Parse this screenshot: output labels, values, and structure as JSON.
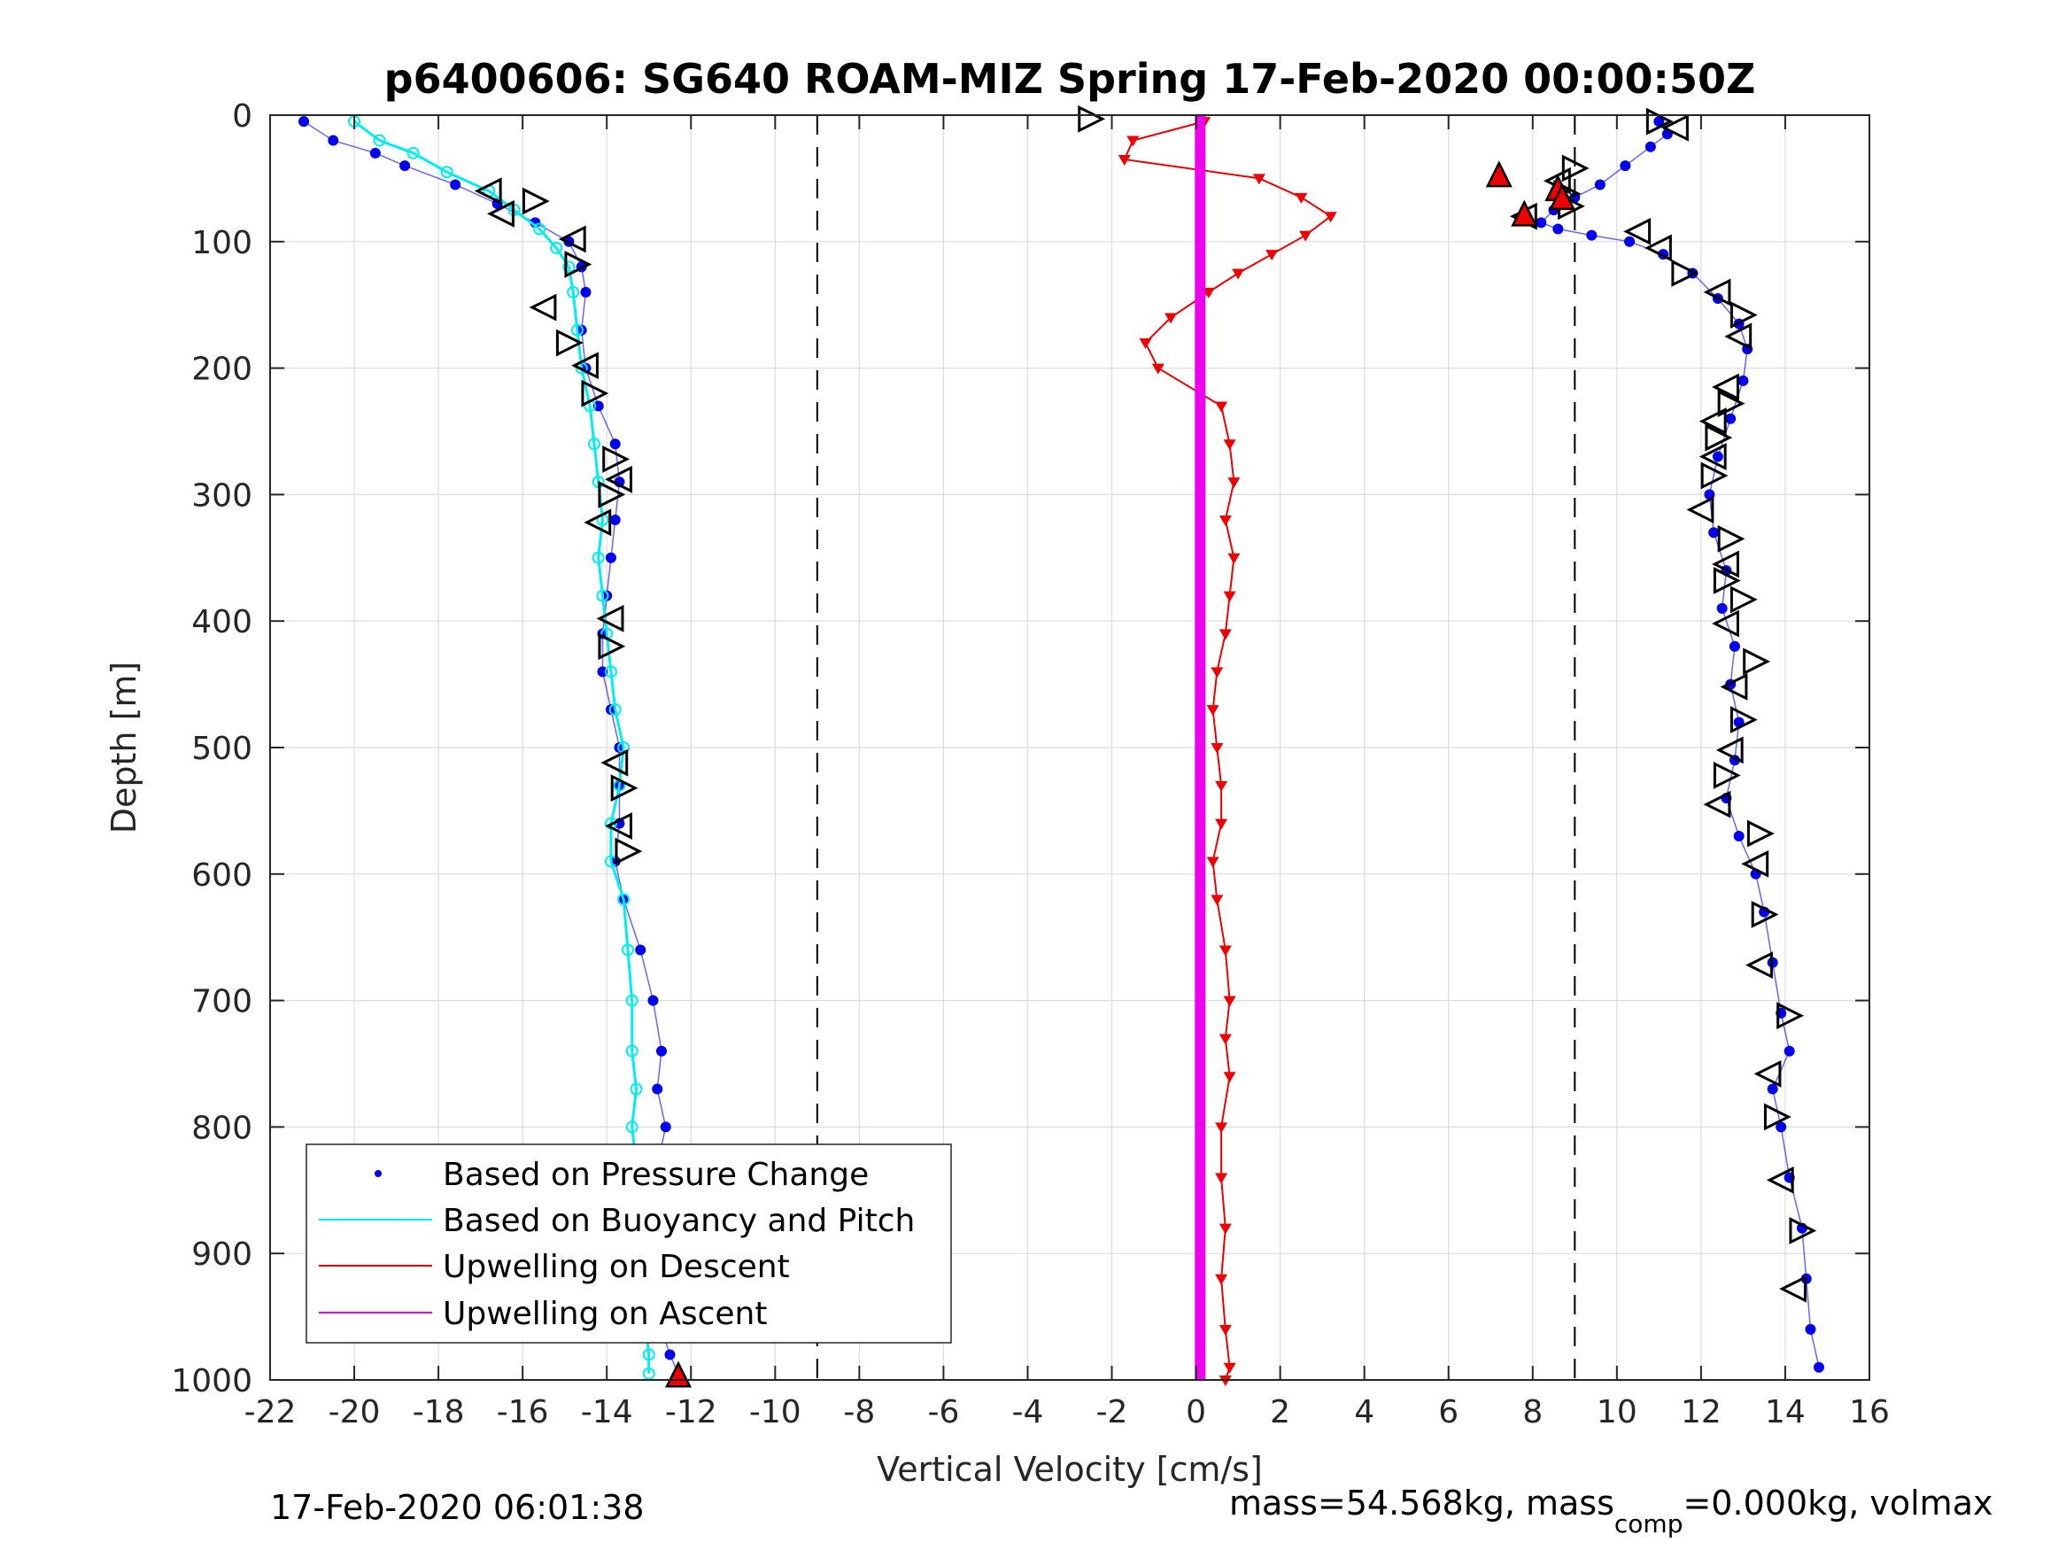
{
  "chart_data": {
    "type": "scatter",
    "title": "p6400606: SG640 ROAM-MIZ Spring 17-Feb-2020 00:00:50Z",
    "xlabel": "Vertical Velocity [cm/s]",
    "ylabel": "Depth [m]",
    "xlim": [
      -22,
      16
    ],
    "ylim": [
      0,
      1000
    ],
    "y_reversed": true,
    "grid": true,
    "x_ticks": [
      "-22",
      "-20",
      "-18",
      "-16",
      "-14",
      "-12",
      "-10",
      "-8",
      "-6",
      "-4",
      "-2",
      "0",
      "2",
      "4",
      "6",
      "8",
      "10",
      "12",
      "14",
      "16"
    ],
    "y_ticks": [
      "0",
      "100",
      "200",
      "300",
      "400",
      "500",
      "600",
      "700",
      "800",
      "900",
      "1000"
    ],
    "reference_lines_x": [
      -9,
      9
    ],
    "legend_position": "bottom-left",
    "footer_left": "17-Feb-2020 06:01:38",
    "footer_right": {
      "part1": "mass=54.568kg, mass",
      "sub": "comp",
      "part2": "=0.000kg, volmax"
    },
    "series": [
      {
        "name": "Based on Pressure Change",
        "color": "#0000ee",
        "profiles": [
          {
            "label": "descent",
            "x": [
              -21.2,
              -20.5,
              -19.5,
              -18.8,
              -17.6,
              -16.6,
              -15.7,
              -14.9,
              -14.6,
              -14.5,
              -14.6,
              -14.5,
              -14.2,
              -13.8,
              -13.7,
              -13.8,
              -13.9,
              -14.0,
              -14.1,
              -14.1,
              -13.9,
              -13.7,
              -13.7,
              -13.7,
              -13.8,
              -13.6,
              -13.2,
              -12.9,
              -12.7,
              -12.8,
              -12.6,
              -12.8,
              -12.9,
              -13.0,
              -12.9,
              -12.8,
              -12.5,
              -12.3
            ],
            "y": [
              5,
              20,
              30,
              40,
              55,
              70,
              85,
              100,
              120,
              140,
              170,
              200,
              230,
              260,
              290,
              320,
              350,
              380,
              410,
              440,
              470,
              500,
              530,
              560,
              590,
              620,
              660,
              700,
              740,
              770,
              800,
              830,
              860,
              890,
              920,
              950,
              980,
              995
            ]
          },
          {
            "label": "ascent",
            "x": [
              11.0,
              11.2,
              10.8,
              10.2,
              9.6,
              9.0,
              8.5,
              8.2,
              8.6,
              9.4,
              10.3,
              11.1,
              11.8,
              12.4,
              12.9,
              13.1,
              13.0,
              12.7,
              12.4,
              12.2,
              12.3,
              12.6,
              12.5,
              12.8,
              12.7,
              12.9,
              12.8,
              12.6,
              12.9,
              13.3,
              13.5,
              13.7,
              13.9,
              14.1,
              13.7,
              13.9,
              14.1,
              14.4,
              14.5,
              14.6,
              14.8
            ],
            "y": [
              5,
              15,
              25,
              40,
              55,
              65,
              75,
              85,
              90,
              95,
              100,
              110,
              125,
              145,
              165,
              185,
              210,
              240,
              270,
              300,
              330,
              360,
              390,
              420,
              450,
              480,
              510,
              540,
              570,
              600,
              630,
              670,
              710,
              740,
              770,
              800,
              840,
              880,
              920,
              960,
              990
            ]
          }
        ]
      },
      {
        "name": "Based on Buoyancy and Pitch",
        "color": "#00eeee",
        "profiles": [
          {
            "label": "descent",
            "x": [
              -20.0,
              -19.4,
              -18.6,
              -17.8,
              -16.8,
              -16.2,
              -15.6,
              -15.2,
              -14.9,
              -14.8,
              -14.7,
              -14.6,
              -14.4,
              -14.3,
              -14.2,
              -14.1,
              -14.2,
              -14.1,
              -14.0,
              -13.9,
              -13.8,
              -13.6,
              -13.7,
              -13.9,
              -13.9,
              -13.6,
              -13.5,
              -13.4,
              -13.4,
              -13.3,
              -13.4,
              -13.3,
              -13.3,
              -13.3,
              -13.2,
              -13.1,
              -13.0,
              -13.0
            ],
            "y": [
              5,
              20,
              30,
              45,
              60,
              75,
              90,
              105,
              120,
              140,
              170,
              200,
              230,
              260,
              290,
              320,
              350,
              380,
              410,
              440,
              470,
              500,
              530,
              560,
              590,
              620,
              660,
              700,
              740,
              770,
              800,
              830,
              860,
              890,
              920,
              950,
              980,
              995
            ]
          }
        ]
      },
      {
        "name": "Upwelling on Descent",
        "color": "#ee0000",
        "profiles": [
          {
            "label": "descent",
            "x": [
              0.2,
              -1.5,
              -1.7,
              1.5,
              2.5,
              3.2,
              2.6,
              1.8,
              1.0,
              0.3,
              -0.6,
              -1.2,
              -0.9,
              0.6,
              0.8,
              0.9,
              0.7,
              0.9,
              0.8,
              0.7,
              0.5,
              0.4,
              0.5,
              0.6,
              0.6,
              0.4,
              0.5,
              0.7,
              0.8,
              0.7,
              0.8,
              0.6,
              0.6,
              0.7,
              0.6,
              0.7,
              0.8,
              0.7
            ],
            "y": [
              5,
              20,
              35,
              50,
              65,
              80,
              95,
              110,
              125,
              140,
              160,
              180,
              200,
              230,
              260,
              290,
              320,
              350,
              380,
              410,
              440,
              470,
              500,
              530,
              560,
              590,
              620,
              660,
              700,
              730,
              760,
              800,
              840,
              880,
              920,
              960,
              990,
              1000
            ]
          }
        ]
      },
      {
        "name": "Upwelling on Ascent",
        "color": "#ee00ee",
        "profiles": [
          {
            "label": "ascent",
            "x": [
              0.1,
              0.1,
              0.1,
              0.1,
              0.1,
              0.1,
              0.1,
              0.1,
              0.1,
              0.1,
              0.1
            ],
            "y": [
              0,
              100,
              200,
              300,
              400,
              500,
              600,
              700,
              800,
              900,
              1000
            ]
          }
        ]
      }
    ],
    "markers": [
      {
        "shape": "tri-right",
        "x": -2.5,
        "y": 3
      },
      {
        "shape": "tri-right",
        "x": 11.0,
        "y": 5
      },
      {
        "shape": "tri-left",
        "x": 11.4,
        "y": 10
      },
      {
        "shape": "tri-left",
        "x": -16.8,
        "y": 60
      },
      {
        "shape": "tri-right",
        "x": -15.7,
        "y": 68
      },
      {
        "shape": "tri-left",
        "x": -16.5,
        "y": 78
      },
      {
        "shape": "tri-left",
        "x": -14.8,
        "y": 98
      },
      {
        "shape": "tri-right",
        "x": -14.7,
        "y": 118
      },
      {
        "shape": "tri-left",
        "x": -15.5,
        "y": 152
      },
      {
        "shape": "tri-right",
        "x": -14.9,
        "y": 180
      },
      {
        "shape": "tri-left",
        "x": -14.5,
        "y": 198
      },
      {
        "shape": "tri-right",
        "x": -14.3,
        "y": 220
      },
      {
        "shape": "tri-right",
        "x": -13.8,
        "y": 272
      },
      {
        "shape": "tri-left",
        "x": -13.7,
        "y": 288
      },
      {
        "shape": "tri-right",
        "x": -13.9,
        "y": 300
      },
      {
        "shape": "tri-left",
        "x": -14.2,
        "y": 322
      },
      {
        "shape": "tri-left",
        "x": -13.9,
        "y": 398
      },
      {
        "shape": "tri-right",
        "x": -13.9,
        "y": 420
      },
      {
        "shape": "tri-left",
        "x": -13.8,
        "y": 512
      },
      {
        "shape": "tri-right",
        "x": -13.6,
        "y": 532
      },
      {
        "shape": "tri-left",
        "x": -13.7,
        "y": 562
      },
      {
        "shape": "tri-right",
        "x": -13.5,
        "y": 582
      },
      {
        "shape": "tri-right",
        "x": 9.0,
        "y": 42
      },
      {
        "shape": "tri-left",
        "x": 8.6,
        "y": 52
      },
      {
        "shape": "tri-right",
        "x": 8.8,
        "y": 62
      },
      {
        "shape": "tri-right",
        "x": 8.9,
        "y": 72
      },
      {
        "shape": "tri-left",
        "x": 7.8,
        "y": 80
      },
      {
        "shape": "tri-left",
        "x": 10.5,
        "y": 92
      },
      {
        "shape": "tri-left",
        "x": 11.0,
        "y": 105
      },
      {
        "shape": "tri-right",
        "x": 11.6,
        "y": 125
      },
      {
        "shape": "tri-left",
        "x": 12.4,
        "y": 140
      },
      {
        "shape": "tri-right",
        "x": 13.0,
        "y": 158
      },
      {
        "shape": "tri-left",
        "x": 12.9,
        "y": 175
      },
      {
        "shape": "tri-left",
        "x": 12.6,
        "y": 215
      },
      {
        "shape": "tri-right",
        "x": 12.7,
        "y": 228
      },
      {
        "shape": "tri-left",
        "x": 12.3,
        "y": 242
      },
      {
        "shape": "tri-right",
        "x": 12.4,
        "y": 255
      },
      {
        "shape": "tri-left",
        "x": 12.3,
        "y": 270
      },
      {
        "shape": "tri-right",
        "x": 12.3,
        "y": 285
      },
      {
        "shape": "tri-left",
        "x": 12.0,
        "y": 312
      },
      {
        "shape": "tri-right",
        "x": 12.7,
        "y": 335
      },
      {
        "shape": "tri-left",
        "x": 12.6,
        "y": 355
      },
      {
        "shape": "tri-right",
        "x": 12.6,
        "y": 368
      },
      {
        "shape": "tri-right",
        "x": 13.0,
        "y": 383
      },
      {
        "shape": "tri-left",
        "x": 12.6,
        "y": 402
      },
      {
        "shape": "tri-right",
        "x": 13.3,
        "y": 432
      },
      {
        "shape": "tri-left",
        "x": 12.8,
        "y": 452
      },
      {
        "shape": "tri-right",
        "x": 13.0,
        "y": 478
      },
      {
        "shape": "tri-left",
        "x": 12.7,
        "y": 502
      },
      {
        "shape": "tri-right",
        "x": 12.6,
        "y": 522
      },
      {
        "shape": "tri-left",
        "x": 12.4,
        "y": 545
      },
      {
        "shape": "tri-right",
        "x": 13.4,
        "y": 568
      },
      {
        "shape": "tri-left",
        "x": 13.3,
        "y": 592
      },
      {
        "shape": "tri-right",
        "x": 13.5,
        "y": 632
      },
      {
        "shape": "tri-left",
        "x": 13.4,
        "y": 672
      },
      {
        "shape": "tri-right",
        "x": 14.1,
        "y": 712
      },
      {
        "shape": "tri-left",
        "x": 13.6,
        "y": 758
      },
      {
        "shape": "tri-right",
        "x": 13.8,
        "y": 792
      },
      {
        "shape": "tri-left",
        "x": 13.9,
        "y": 842
      },
      {
        "shape": "tri-right",
        "x": 14.4,
        "y": 882
      },
      {
        "shape": "tri-left",
        "x": 14.2,
        "y": 928
      }
    ],
    "red_markers": [
      {
        "x": 7.2,
        "y": 47
      },
      {
        "x": 8.6,
        "y": 58
      },
      {
        "x": 8.7,
        "y": 65
      },
      {
        "x": 7.8,
        "y": 78
      },
      {
        "x": -12.3,
        "y": 996
      }
    ]
  }
}
